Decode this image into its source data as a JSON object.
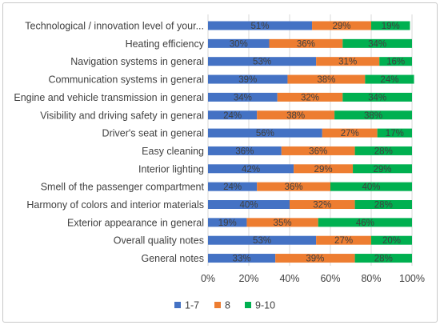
{
  "chart_data": {
    "type": "bar",
    "orientation": "horizontal",
    "stacked": "percent",
    "categories": [
      "Technological / innovation level of your...",
      "Heating efficiency",
      "Navigation systems in general",
      "Communication systems in general",
      "Engine and vehicle transmission in general",
      "Visibility and driving safety in general",
      "Driver's seat in general",
      "Easy cleaning",
      "Interior lighting",
      "Smell of the passenger compartment",
      "Harmony of colors and interior materials",
      "Exterior appearance in general",
      "Overall quality notes",
      "General notes"
    ],
    "series": [
      {
        "name": "1-7",
        "color": "#4472C4",
        "values": [
          51,
          30,
          53,
          39,
          34,
          24,
          56,
          36,
          42,
          24,
          40,
          19,
          53,
          33
        ]
      },
      {
        "name": "8",
        "color": "#ED7D31",
        "values": [
          29,
          36,
          31,
          38,
          32,
          38,
          27,
          36,
          29,
          36,
          32,
          35,
          27,
          39
        ]
      },
      {
        "name": "9-10",
        "color": "#00B050",
        "values": [
          19,
          34,
          16,
          24,
          34,
          38,
          17,
          28,
          29,
          40,
          28,
          46,
          20,
          28
        ]
      }
    ],
    "x_ticks": [
      "0%",
      "20%",
      "40%",
      "60%",
      "80%",
      "100%"
    ],
    "xlim": [
      0,
      100
    ],
    "grid": true,
    "legend_position": "bottom"
  }
}
